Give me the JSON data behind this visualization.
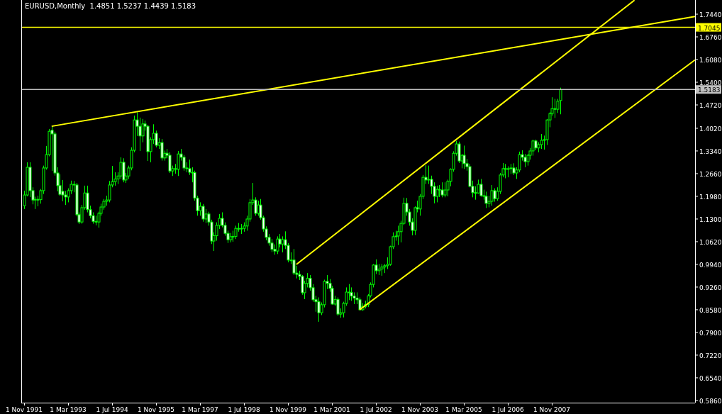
{
  "chart_data": {
    "type": "candlestick",
    "title": "EURUSD,Monthly  1.4851 1.5237 1.4439 1.5183",
    "x": [
      "1991-11",
      "1991-12",
      "1992-01",
      "1992-02",
      "1992-03",
      "1992-04",
      "1992-05",
      "1992-06",
      "1992-07",
      "1992-08",
      "1992-09",
      "1992-10",
      "1992-11",
      "1992-12",
      "1993-01",
      "1993-02",
      "1993-03",
      "1993-04",
      "1993-05",
      "1993-06",
      "1993-07",
      "1993-08",
      "1993-09",
      "1993-10",
      "1993-11",
      "1993-12",
      "1994-01",
      "1994-02",
      "1994-03",
      "1994-04",
      "1994-05",
      "1994-06",
      "1994-07",
      "1994-08",
      "1994-09",
      "1994-10",
      "1994-11",
      "1994-12",
      "1995-01",
      "1995-02",
      "1995-03",
      "1995-04",
      "1995-05",
      "1995-06",
      "1995-07",
      "1995-08",
      "1995-09",
      "1995-10",
      "1995-11",
      "1995-12",
      "1996-01",
      "1996-02",
      "1996-03",
      "1996-04",
      "1996-05",
      "1996-06",
      "1996-07",
      "1996-08",
      "1996-09",
      "1996-10",
      "1996-11",
      "1996-12",
      "1997-01",
      "1997-02",
      "1997-03",
      "1997-04",
      "1997-05",
      "1997-06",
      "1997-07",
      "1997-08",
      "1997-09",
      "1997-10",
      "1997-11",
      "1997-12",
      "1998-01",
      "1998-02",
      "1998-03",
      "1998-04",
      "1998-05",
      "1998-06",
      "1998-07",
      "1998-08",
      "1998-09",
      "1998-10",
      "1998-11",
      "1998-12",
      "1999-01",
      "1999-02",
      "1999-03",
      "1999-04",
      "1999-05",
      "1999-06",
      "1999-07",
      "1999-08",
      "1999-09",
      "1999-10",
      "1999-11",
      "1999-12",
      "2000-01",
      "2000-02",
      "2000-03",
      "2000-04",
      "2000-05",
      "2000-06",
      "2000-07",
      "2000-08",
      "2000-09",
      "2000-10",
      "2000-11",
      "2000-12",
      "2001-01",
      "2001-02",
      "2001-03",
      "2001-04",
      "2001-05",
      "2001-06",
      "2001-07",
      "2001-08",
      "2001-09",
      "2001-10",
      "2001-11",
      "2001-12",
      "2002-01",
      "2002-02",
      "2002-03",
      "2002-04",
      "2002-05",
      "2002-06",
      "2002-07",
      "2002-08",
      "2002-09",
      "2002-10",
      "2002-11",
      "2002-12",
      "2003-01",
      "2003-02",
      "2003-03",
      "2003-04",
      "2003-05",
      "2003-06",
      "2003-07",
      "2003-08",
      "2003-09",
      "2003-10",
      "2003-11",
      "2003-12",
      "2004-01",
      "2004-02",
      "2004-03",
      "2004-04",
      "2004-05",
      "2004-06",
      "2004-07",
      "2004-08",
      "2004-09",
      "2004-10",
      "2004-11",
      "2004-12",
      "2005-01",
      "2005-02",
      "2005-03",
      "2005-04",
      "2005-05",
      "2005-06",
      "2005-07",
      "2005-08",
      "2005-09",
      "2005-10",
      "2005-11",
      "2005-12",
      "2006-01",
      "2006-02",
      "2006-03",
      "2006-04",
      "2006-05",
      "2006-06",
      "2006-07",
      "2006-08",
      "2006-09",
      "2006-10",
      "2006-11",
      "2006-12",
      "2007-01",
      "2007-02",
      "2007-03",
      "2007-04",
      "2007-05",
      "2007-06",
      "2007-07",
      "2007-08",
      "2007-09",
      "2007-10",
      "2007-11",
      "2007-12",
      "2008-01",
      "2008-02"
    ],
    "color": "#00ff00",
    "ohlc": [
      [
        1.17,
        1.215,
        1.16,
        1.202
      ],
      [
        1.202,
        1.3,
        1.198,
        1.285
      ],
      [
        1.285,
        1.3,
        1.196,
        1.215
      ],
      [
        1.215,
        1.225,
        1.174,
        1.187
      ],
      [
        1.187,
        1.197,
        1.16,
        1.189
      ],
      [
        1.189,
        1.2,
        1.168,
        1.188
      ],
      [
        1.188,
        1.22,
        1.176,
        1.215
      ],
      [
        1.215,
        1.29,
        1.205,
        1.283
      ],
      [
        1.283,
        1.349,
        1.278,
        1.323
      ],
      [
        1.323,
        1.4,
        1.318,
        1.393
      ],
      [
        1.396,
        1.408,
        1.274,
        1.385
      ],
      [
        1.385,
        1.392,
        1.26,
        1.268
      ],
      [
        1.268,
        1.285,
        1.213,
        1.23
      ],
      [
        1.23,
        1.264,
        1.2,
        1.204
      ],
      [
        1.213,
        1.247,
        1.183,
        1.202
      ],
      [
        1.202,
        1.214,
        1.172,
        1.196
      ],
      [
        1.196,
        1.222,
        1.18,
        1.215
      ],
      [
        1.215,
        1.245,
        1.205,
        1.234
      ],
      [
        1.234,
        1.244,
        1.21,
        1.232
      ],
      [
        1.232,
        1.238,
        1.138,
        1.143
      ],
      [
        1.143,
        1.15,
        1.115,
        1.121
      ],
      [
        1.121,
        1.172,
        1.116,
        1.164
      ],
      [
        1.164,
        1.23,
        1.158,
        1.208
      ],
      [
        1.208,
        1.23,
        1.15,
        1.158
      ],
      [
        1.158,
        1.17,
        1.132,
        1.14
      ],
      [
        1.14,
        1.15,
        1.116,
        1.123
      ],
      [
        1.123,
        1.14,
        1.111,
        1.121
      ],
      [
        1.121,
        1.152,
        1.104,
        1.147
      ],
      [
        1.147,
        1.176,
        1.14,
        1.166
      ],
      [
        1.166,
        1.19,
        1.158,
        1.183
      ],
      [
        1.183,
        1.2,
        1.17,
        1.187
      ],
      [
        1.187,
        1.244,
        1.18,
        1.232
      ],
      [
        1.232,
        1.289,
        1.225,
        1.242
      ],
      [
        1.242,
        1.27,
        1.23,
        1.25
      ],
      [
        1.25,
        1.27,
        1.235,
        1.259
      ],
      [
        1.259,
        1.315,
        1.25,
        1.3
      ],
      [
        1.3,
        1.312,
        1.24,
        1.247
      ],
      [
        1.247,
        1.268,
        1.238,
        1.259
      ],
      [
        1.259,
        1.29,
        1.25,
        1.283
      ],
      [
        1.283,
        1.345,
        1.276,
        1.336
      ],
      [
        1.336,
        1.44,
        1.33,
        1.427
      ],
      [
        1.427,
        1.45,
        1.379,
        1.408
      ],
      [
        1.408,
        1.434,
        1.334,
        1.379
      ],
      [
        1.379,
        1.43,
        1.36,
        1.415
      ],
      [
        1.415,
        1.425,
        1.395,
        1.408
      ],
      [
        1.408,
        1.412,
        1.304,
        1.332
      ],
      [
        1.332,
        1.375,
        1.3,
        1.368
      ],
      [
        1.368,
        1.414,
        1.355,
        1.387
      ],
      [
        1.387,
        1.395,
        1.345,
        1.351
      ],
      [
        1.351,
        1.372,
        1.34,
        1.359
      ],
      [
        1.359,
        1.37,
        1.305,
        1.313
      ],
      [
        1.313,
        1.335,
        1.305,
        1.327
      ],
      [
        1.327,
        1.34,
        1.312,
        1.321
      ],
      [
        1.321,
        1.33,
        1.268,
        1.274
      ],
      [
        1.274,
        1.29,
        1.259,
        1.281
      ],
      [
        1.281,
        1.295,
        1.266,
        1.279
      ],
      [
        1.279,
        1.334,
        1.259,
        1.325
      ],
      [
        1.325,
        1.34,
        1.305,
        1.315
      ],
      [
        1.315,
        1.322,
        1.275,
        1.283
      ],
      [
        1.283,
        1.3,
        1.27,
        1.281
      ],
      [
        1.281,
        1.308,
        1.262,
        1.27
      ],
      [
        1.27,
        1.285,
        1.24,
        1.269
      ],
      [
        1.269,
        1.275,
        1.185,
        1.193
      ],
      [
        1.193,
        1.2,
        1.14,
        1.155
      ],
      [
        1.155,
        1.18,
        1.14,
        1.168
      ],
      [
        1.168,
        1.175,
        1.122,
        1.13
      ],
      [
        1.13,
        1.16,
        1.118,
        1.145
      ],
      [
        1.145,
        1.152,
        1.11,
        1.121
      ],
      [
        1.121,
        1.128,
        1.055,
        1.064
      ],
      [
        1.064,
        1.09,
        1.034,
        1.08
      ],
      [
        1.08,
        1.12,
        1.065,
        1.111
      ],
      [
        1.111,
        1.145,
        1.1,
        1.132
      ],
      [
        1.132,
        1.15,
        1.105,
        1.111
      ],
      [
        1.111,
        1.12,
        1.08,
        1.087
      ],
      [
        1.087,
        1.095,
        1.058,
        1.068
      ],
      [
        1.068,
        1.088,
        1.06,
        1.077
      ],
      [
        1.077,
        1.095,
        1.062,
        1.078
      ],
      [
        1.078,
        1.11,
        1.07,
        1.102
      ],
      [
        1.102,
        1.118,
        1.092,
        1.1
      ],
      [
        1.1,
        1.115,
        1.085,
        1.102
      ],
      [
        1.102,
        1.12,
        1.092,
        1.109
      ],
      [
        1.109,
        1.14,
        1.095,
        1.13
      ],
      [
        1.13,
        1.19,
        1.122,
        1.179
      ],
      [
        1.179,
        1.238,
        1.172,
        1.187
      ],
      [
        1.187,
        1.195,
        1.14,
        1.147
      ],
      [
        1.147,
        1.185,
        1.14,
        1.172
      ],
      [
        1.172,
        1.19,
        1.128,
        1.134
      ],
      [
        1.134,
        1.14,
        1.092,
        1.1
      ],
      [
        1.1,
        1.108,
        1.066,
        1.075
      ],
      [
        1.075,
        1.085,
        1.05,
        1.058
      ],
      [
        1.058,
        1.07,
        1.031,
        1.039
      ],
      [
        1.039,
        1.054,
        1.023,
        1.034
      ],
      [
        1.034,
        1.078,
        1.025,
        1.07
      ],
      [
        1.07,
        1.085,
        1.045,
        1.055
      ],
      [
        1.055,
        1.078,
        1.03,
        1.068
      ],
      [
        1.068,
        1.093,
        1.04,
        1.051
      ],
      [
        1.051,
        1.058,
        1.0,
        1.007
      ],
      [
        1.007,
        1.03,
        0.995,
        1.007
      ],
      [
        1.007,
        1.04,
        0.962,
        0.968
      ],
      [
        0.968,
        0.99,
        0.952,
        0.964
      ],
      [
        0.964,
        0.975,
        0.947,
        0.958
      ],
      [
        0.958,
        0.962,
        0.903,
        0.909
      ],
      [
        0.909,
        0.945,
        0.89,
        0.937
      ],
      [
        0.937,
        0.968,
        0.925,
        0.952
      ],
      [
        0.952,
        0.962,
        0.915,
        0.924
      ],
      [
        0.924,
        0.935,
        0.882,
        0.888
      ],
      [
        0.888,
        0.9,
        0.852,
        0.882
      ],
      [
        0.882,
        0.895,
        0.822,
        0.849
      ],
      [
        0.849,
        0.88,
        0.842,
        0.873
      ],
      [
        0.873,
        0.948,
        0.865,
        0.943
      ],
      [
        0.943,
        0.962,
        0.92,
        0.937
      ],
      [
        0.937,
        0.95,
        0.912,
        0.922
      ],
      [
        0.922,
        0.93,
        0.873,
        0.875
      ],
      [
        0.875,
        0.9,
        0.87,
        0.889
      ],
      [
        0.889,
        0.895,
        0.84,
        0.845
      ],
      [
        0.845,
        0.862,
        0.834,
        0.849
      ],
      [
        0.849,
        0.882,
        0.835,
        0.877
      ],
      [
        0.877,
        0.925,
        0.87,
        0.911
      ],
      [
        0.911,
        0.935,
        0.887,
        0.91
      ],
      [
        0.91,
        0.925,
        0.885,
        0.899
      ],
      [
        0.899,
        0.91,
        0.875,
        0.893
      ],
      [
        0.893,
        0.91,
        0.875,
        0.888
      ],
      [
        0.888,
        0.895,
        0.856,
        0.858
      ],
      [
        0.858,
        0.878,
        0.855,
        0.868
      ],
      [
        0.868,
        0.885,
        0.862,
        0.874
      ],
      [
        0.874,
        0.905,
        0.866,
        0.9
      ],
      [
        0.9,
        0.94,
        0.895,
        0.934
      ],
      [
        0.934,
        0.995,
        0.925,
        0.992
      ],
      [
        0.992,
        1.009,
        0.965,
        0.975
      ],
      [
        0.975,
        0.995,
        0.962,
        0.98
      ],
      [
        0.98,
        0.995,
        0.96,
        0.986
      ],
      [
        0.986,
        0.995,
        0.968,
        0.99
      ],
      [
        0.99,
        1.015,
        0.98,
        0.994
      ],
      [
        0.994,
        1.05,
        0.99,
        1.047
      ],
      [
        1.047,
        1.09,
        1.04,
        1.077
      ],
      [
        1.077,
        1.095,
        1.065,
        1.079
      ],
      [
        1.079,
        1.11,
        1.052,
        1.092
      ],
      [
        1.092,
        1.125,
        1.06,
        1.117
      ],
      [
        1.117,
        1.194,
        1.112,
        1.177
      ],
      [
        1.177,
        1.193,
        1.14,
        1.151
      ],
      [
        1.151,
        1.16,
        1.11,
        1.121
      ],
      [
        1.121,
        1.132,
        1.081,
        1.096
      ],
      [
        1.096,
        1.168,
        1.082,
        1.164
      ],
      [
        1.164,
        1.185,
        1.15,
        1.16
      ],
      [
        1.16,
        1.205,
        1.14,
        1.198
      ],
      [
        1.198,
        1.262,
        1.19,
        1.255
      ],
      [
        1.255,
        1.291,
        1.235,
        1.247
      ],
      [
        1.247,
        1.29,
        1.235,
        1.249
      ],
      [
        1.249,
        1.26,
        1.205,
        1.228
      ],
      [
        1.228,
        1.24,
        1.177,
        1.198
      ],
      [
        1.198,
        1.23,
        1.18,
        1.219
      ],
      [
        1.219,
        1.232,
        1.196,
        1.217
      ],
      [
        1.217,
        1.24,
        1.195,
        1.202
      ],
      [
        1.202,
        1.24,
        1.195,
        1.217
      ],
      [
        1.217,
        1.248,
        1.198,
        1.243
      ],
      [
        1.243,
        1.282,
        1.228,
        1.279
      ],
      [
        1.279,
        1.333,
        1.272,
        1.327
      ],
      [
        1.327,
        1.364,
        1.32,
        1.355
      ],
      [
        1.355,
        1.362,
        1.298,
        1.304
      ],
      [
        1.304,
        1.325,
        1.282,
        1.321
      ],
      [
        1.321,
        1.35,
        1.28,
        1.296
      ],
      [
        1.296,
        1.31,
        1.275,
        1.287
      ],
      [
        1.287,
        1.295,
        1.225,
        1.228
      ],
      [
        1.228,
        1.245,
        1.195,
        1.209
      ],
      [
        1.209,
        1.228,
        1.188,
        1.208
      ],
      [
        1.208,
        1.248,
        1.206,
        1.234
      ],
      [
        1.234,
        1.25,
        1.197,
        1.2
      ],
      [
        1.2,
        1.218,
        1.188,
        1.198
      ],
      [
        1.198,
        1.212,
        1.163,
        1.177
      ],
      [
        1.177,
        1.2,
        1.165,
        1.183
      ],
      [
        1.183,
        1.232,
        1.17,
        1.215
      ],
      [
        1.215,
        1.222,
        1.182,
        1.191
      ],
      [
        1.191,
        1.225,
        1.185,
        1.213
      ],
      [
        1.213,
        1.268,
        1.205,
        1.262
      ],
      [
        1.262,
        1.298,
        1.255,
        1.281
      ],
      [
        1.281,
        1.295,
        1.252,
        1.279
      ],
      [
        1.279,
        1.288,
        1.255,
        1.281
      ],
      [
        1.281,
        1.295,
        1.265,
        1.283
      ],
      [
        1.283,
        1.297,
        1.262,
        1.268
      ],
      [
        1.268,
        1.285,
        1.25,
        1.277
      ],
      [
        1.277,
        1.332,
        1.27,
        1.323
      ],
      [
        1.323,
        1.336,
        1.305,
        1.315
      ],
      [
        1.315,
        1.325,
        1.285,
        1.302
      ],
      [
        1.302,
        1.325,
        1.29,
        1.321
      ],
      [
        1.321,
        1.343,
        1.308,
        1.334
      ],
      [
        1.334,
        1.368,
        1.32,
        1.364
      ],
      [
        1.364,
        1.368,
        1.336,
        1.343
      ],
      [
        1.343,
        1.36,
        1.33,
        1.353
      ],
      [
        1.353,
        1.385,
        1.34,
        1.366
      ],
      [
        1.366,
        1.38,
        1.338,
        1.368
      ],
      [
        1.368,
        1.43,
        1.352,
        1.427
      ],
      [
        1.427,
        1.45,
        1.405,
        1.446
      ],
      [
        1.446,
        1.495,
        1.44,
        1.461
      ],
      [
        1.461,
        1.49,
        1.433,
        1.459
      ],
      [
        1.459,
        1.49,
        1.448,
        1.483
      ],
      [
        1.4851,
        1.5237,
        1.4439,
        1.5183
      ]
    ],
    "series": [
      {
        "type": "line",
        "color": "#ffff00",
        "x": [
          "1992-09",
          "2012-03"
        ],
        "values": [
          1.408,
          1.737
        ]
      },
      {
        "type": "line",
        "color": "#ffff00",
        "x": [
          "2000-02",
          "2010-05"
        ],
        "values": [
          0.994,
          1.786
        ]
      },
      {
        "type": "line",
        "color": "#ffff00",
        "x": [
          "2002-01",
          "2012-03"
        ],
        "values": [
          0.858,
          1.607
        ]
      }
    ],
    "xlim": [
      "1991-10",
      "2012-03"
    ],
    "xticks": [
      {
        "value": "1991-11",
        "label": "1 Nov 1991"
      },
      {
        "value": "1993-03",
        "label": "1 Mar 1993"
      },
      {
        "value": "1994-07",
        "label": "1 Jul 1994"
      },
      {
        "value": "1995-11",
        "label": "1 Nov 1995"
      },
      {
        "value": "1997-03",
        "label": "1 Mar 1997"
      },
      {
        "value": "1998-07",
        "label": "1 Jul 1998"
      },
      {
        "value": "1999-11",
        "label": "1 Nov 1999"
      },
      {
        "value": "2001-03",
        "label": "1 Mar 2001"
      },
      {
        "value": "2002-07",
        "label": "1 Jul 2002"
      },
      {
        "value": "2003-11",
        "label": "1 Nov 2003"
      },
      {
        "value": "2005-03",
        "label": "1 Mar 2005"
      },
      {
        "value": "2006-07",
        "label": "1 Jul 2006"
      },
      {
        "value": "2007-11",
        "label": "1 Nov 2007"
      }
    ],
    "ylim": [
      0.5795,
      1.7865
    ],
    "yticks": [
      {
        "value": 1.744,
        "label": "1.7440"
      },
      {
        "value": 1.676,
        "label": "1.6760"
      },
      {
        "value": 1.608,
        "label": "1.6080"
      },
      {
        "value": 1.54,
        "label": "1.5400"
      },
      {
        "value": 1.472,
        "label": "1.4720"
      },
      {
        "value": 1.402,
        "label": "1.4020"
      },
      {
        "value": 1.334,
        "label": "1.3340"
      },
      {
        "value": 1.266,
        "label": "1.2660"
      },
      {
        "value": 1.198,
        "label": "1.1980"
      },
      {
        "value": 1.13,
        "label": "1.1300"
      },
      {
        "value": 1.062,
        "label": "1.0620"
      },
      {
        "value": 0.994,
        "label": "0.9940"
      },
      {
        "value": 0.926,
        "label": "0.9260"
      },
      {
        "value": 0.858,
        "label": "0.8580"
      },
      {
        "value": 0.79,
        "label": "0.7900"
      },
      {
        "value": 0.722,
        "label": "0.7220"
      },
      {
        "value": 0.654,
        "label": "0.6540"
      },
      {
        "value": 0.586,
        "label": "0.5860"
      }
    ],
    "ref_lines": [
      {
        "axis": "y",
        "value": 1.7045,
        "label": "1.7045",
        "color": "#ffff00"
      },
      {
        "axis": "y",
        "value": 1.5183,
        "label": "1.5183",
        "color": "#c0c0c0"
      }
    ]
  }
}
